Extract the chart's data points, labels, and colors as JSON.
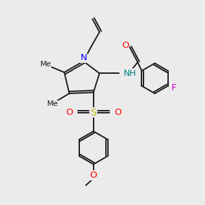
{
  "bg_color": "#ebebeb",
  "bond_color": "#1a1a1a",
  "N_color": "#0000ff",
  "O_color": "#ff0000",
  "S_color": "#b8b800",
  "F_color": "#cc00cc",
  "NH_color": "#008080",
  "figsize": [
    3.0,
    3.0
  ],
  "dpi": 100,
  "xlim": [
    0,
    10
  ],
  "ylim": [
    0,
    10
  ]
}
